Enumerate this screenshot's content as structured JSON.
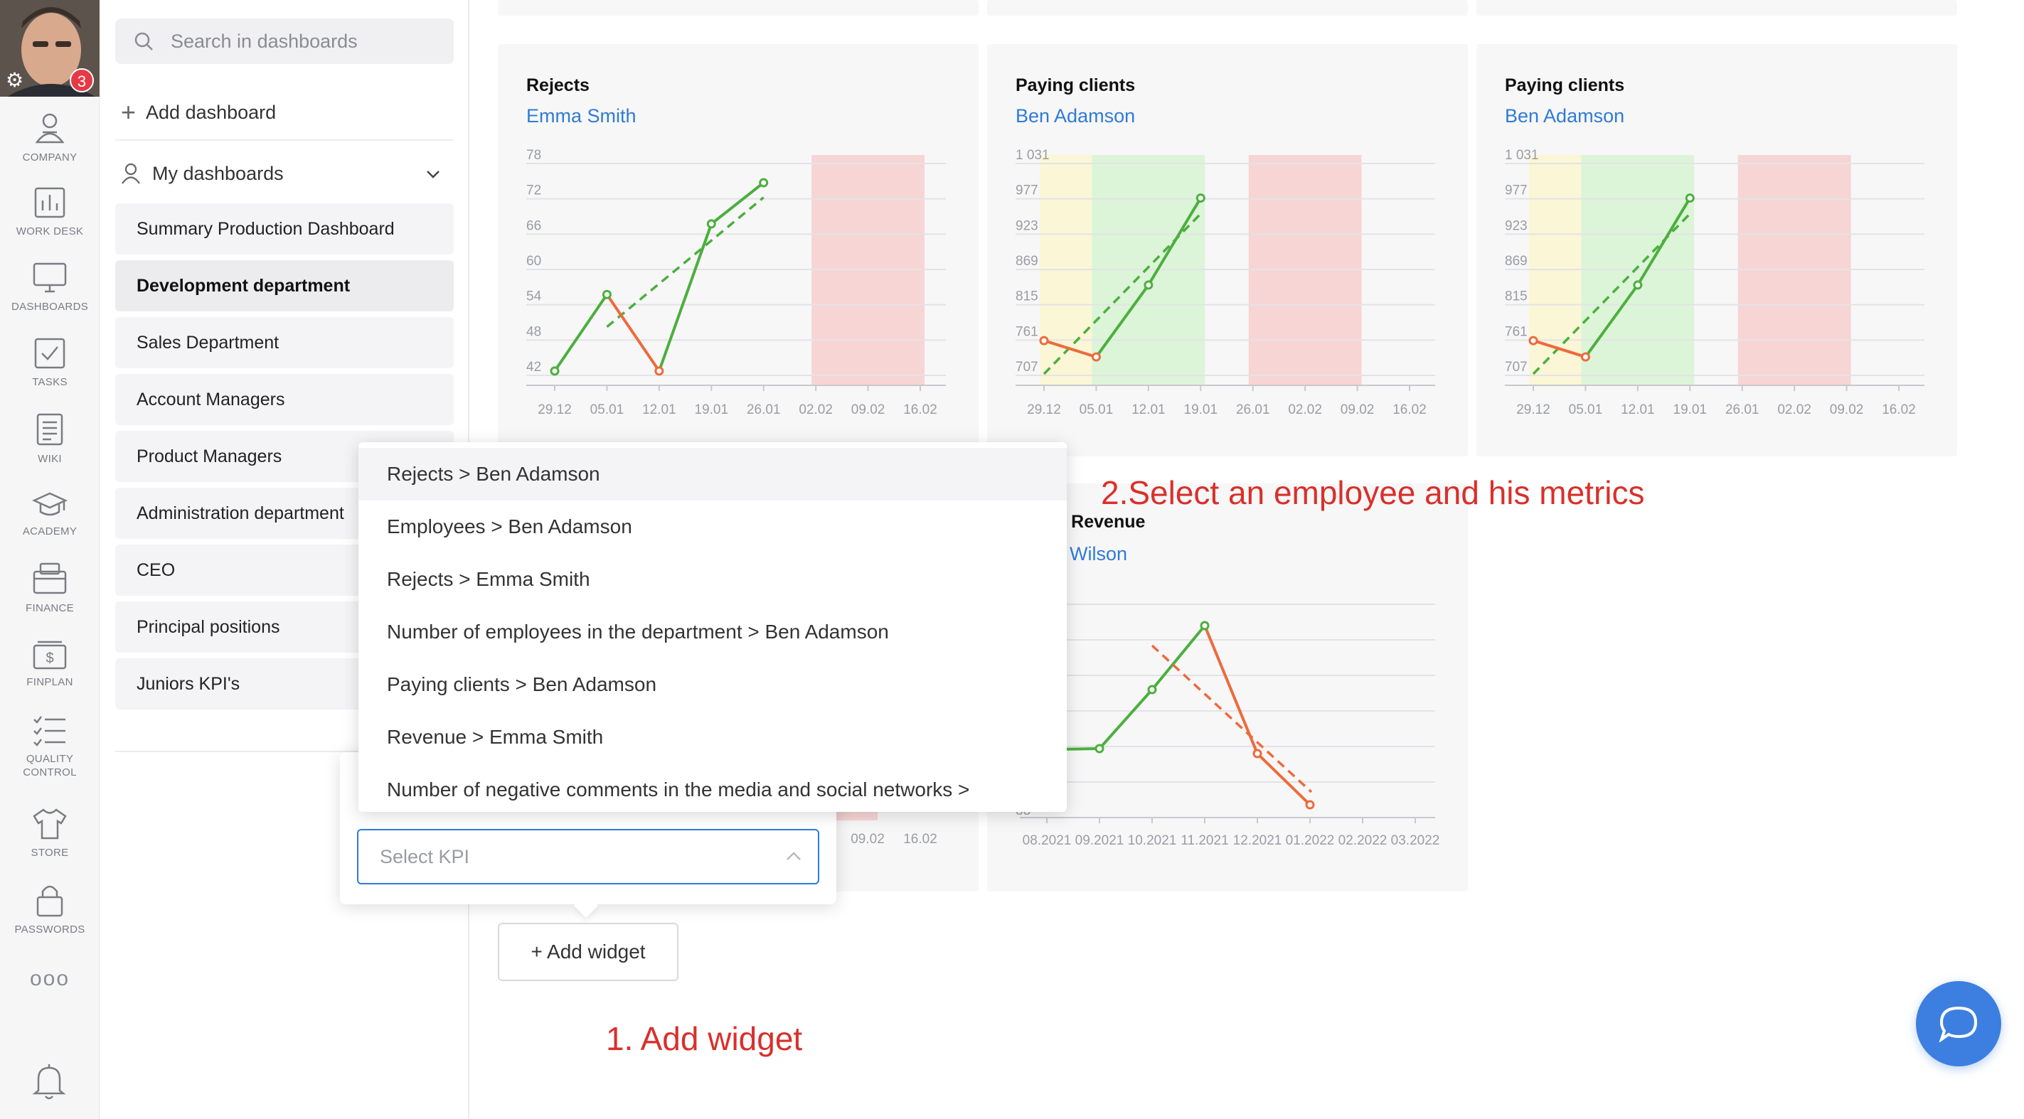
{
  "user": {
    "notification_count": "3"
  },
  "rail": {
    "items": [
      {
        "label": "COMPANY",
        "icon": "company-icon"
      },
      {
        "label": "WORK DESK",
        "icon": "work-desk-icon"
      },
      {
        "label": "DASHBOARDS",
        "icon": "dashboards-icon"
      },
      {
        "label": "TASKS",
        "icon": "tasks-icon"
      },
      {
        "label": "WIKI",
        "icon": "wiki-icon"
      },
      {
        "label": "ACADEMY",
        "icon": "academy-icon"
      },
      {
        "label": "FINANCE",
        "icon": "finance-icon"
      },
      {
        "label": "FINPLAN",
        "icon": "finplan-icon"
      },
      {
        "label": "QUALITY CONTROL",
        "icon": "quality-control-icon"
      },
      {
        "label": "STORE",
        "icon": "store-icon"
      },
      {
        "label": "PASSWORDS",
        "icon": "passwords-icon"
      }
    ],
    "more": "ooo"
  },
  "panel": {
    "search_placeholder": "Search in dashboards",
    "add_dashboard": "Add dashboard",
    "my_dashboards": "My dashboards",
    "dashboards": [
      "Summary Production Dashboard",
      "Development department",
      "Sales Department",
      "Account Managers",
      "Product Managers",
      "Administration department",
      "CEO",
      "Principal positions",
      "Juniors KPI's"
    ],
    "active_dashboard": "Development department"
  },
  "widgets": [
    {
      "title": "Rejects",
      "person": "Emma Smith",
      "chart_data": {
        "type": "line",
        "y_ticks": [
          "78",
          "72",
          "66",
          "60",
          "54",
          "48",
          "42"
        ],
        "x_ticks": [
          "29.12",
          "05.01",
          "12.01",
          "19.01",
          "26.01",
          "02.02",
          "09.02",
          "16.02"
        ],
        "series": [
          {
            "x": [
              "29.12",
              "05.01",
              "12.01",
              "19.01",
              "26.01"
            ],
            "values": [
              42.5,
              55.5,
              42.5,
              67.5,
              74.5
            ]
          }
        ],
        "trend": {
          "from": [
            "05.01",
            50
          ],
          "to": [
            "26.01",
            72
          ]
        },
        "colors": {
          "up": "#4caf3e",
          "down": "#ee6a3c",
          "trend": "#4caf3e"
        },
        "bands": [
          {
            "from": "02.02",
            "to": "16.02",
            "color": "#f7d5d5"
          }
        ]
      }
    },
    {
      "title": "Paying clients",
      "person": "Ben Adamson",
      "chart_data": {
        "type": "line",
        "y_ticks": [
          "1 031",
          "977",
          "923",
          "869",
          "815",
          "761",
          "707"
        ],
        "x_ticks": [
          "29.12",
          "05.01",
          "12.01",
          "19.01",
          "26.01",
          "02.02",
          "09.02",
          "16.02"
        ],
        "series": [
          {
            "x": [
              "29.12",
              "05.01",
              "12.01",
              "19.01"
            ],
            "values": [
              758,
              733,
              843,
              976
            ]
          }
        ],
        "trend": {
          "from": [
            "29.12",
            707
          ],
          "to": [
            "19.01",
            952
          ]
        },
        "colors": {
          "up": "#4caf3e",
          "down": "#ee6a3c",
          "trend": "#4caf3e"
        },
        "bands": [
          {
            "from": "29.12",
            "to": "05.01",
            "color": "#fbf6d6"
          },
          {
            "from": "05.01",
            "to": "19.01",
            "color": "#dcf5d8"
          },
          {
            "from": "26.01",
            "to": "09.02",
            "color": "#f7d5d5"
          }
        ]
      }
    },
    {
      "title": "Paying clients",
      "person": "Ben Adamson",
      "chart_data": {
        "type": "line",
        "y_ticks": [
          "1 031",
          "977",
          "923",
          "869",
          "815",
          "761",
          "707"
        ],
        "x_ticks": [
          "29.12",
          "05.01",
          "12.01",
          "19.01",
          "26.01",
          "02.02",
          "09.02",
          "16.02"
        ],
        "series": [
          {
            "x": [
              "29.12",
              "05.01",
              "12.01",
              "19.01"
            ],
            "values": [
              758,
              733,
              843,
              976
            ]
          }
        ],
        "trend": {
          "from": [
            "29.12",
            707
          ],
          "to": [
            "19.01",
            952
          ]
        },
        "colors": {
          "up": "#4caf3e",
          "down": "#ee6a3c",
          "trend": "#4caf3e"
        },
        "bands": [
          {
            "from": "29.12",
            "to": "05.01",
            "color": "#fbf6d6"
          },
          {
            "from": "05.01",
            "to": "19.01",
            "color": "#dcf5d8"
          },
          {
            "from": "26.01",
            "to": "09.02",
            "color": "#f7d5d5"
          }
        ]
      }
    },
    {
      "title": "tric] Revenue",
      "person": "Wilson",
      "chart_data": {
        "type": "line",
        "y_ticks": [
          "38"
        ],
        "x_ticks": [
          "08.2021",
          "09.2021",
          "10.2021",
          "11.2021",
          "12.2021",
          "01.2022",
          "02.2022",
          "03.2022"
        ]
      }
    },
    {
      "chart_data": {
        "type": "line",
        "x_ticks": [
          "09.02",
          "16.02"
        ]
      }
    }
  ],
  "dropdown": {
    "items": [
      "Rejects > Ben Adamson",
      "Employees > Ben Adamson",
      "Rejects > Emma Smith",
      "Number of employees in the department > Ben Adamson",
      "Paying clients > Ben Adamson",
      "Revenue > Emma Smith",
      "Number of negative comments in the media and social networks >"
    ]
  },
  "kpi_select": {
    "placeholder": "Select KPI"
  },
  "add_widget": "+ Add widget",
  "annotations": {
    "step1": "1. Add widget",
    "step2": "2.Select an employee and his metrics"
  }
}
